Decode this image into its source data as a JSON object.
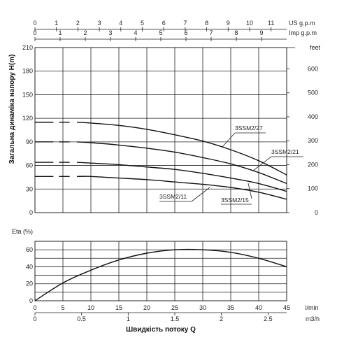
{
  "chart_data": [
    {
      "type": "line",
      "title": "",
      "xlabel": "",
      "ylabel": "Загальна динаміка напору H(m)",
      "ylabel_right_unit": "feet",
      "ylim": [
        0,
        210
      ],
      "yticks": [
        0,
        30,
        60,
        90,
        120,
        150,
        180,
        210
      ],
      "yticks_right": [
        0,
        100,
        200,
        300,
        400,
        500,
        600
      ],
      "xlim": [
        0,
        45
      ],
      "top_axis_us": {
        "unit": "US g.p.m",
        "ticks": [
          0,
          1,
          2,
          3,
          4,
          5,
          6,
          7,
          8,
          9,
          10,
          11
        ]
      },
      "top_axis_imp": {
        "unit": "Imp g.p.m",
        "ticks": [
          0,
          1,
          2,
          3,
          4,
          5,
          6,
          7,
          8,
          9
        ]
      },
      "series": [
        {
          "name": "3SSM2/27",
          "x": [
            0,
            5,
            10,
            15,
            20,
            25,
            30,
            35,
            40,
            45
          ],
          "y": [
            115,
            115,
            114,
            111,
            106,
            99,
            91,
            80,
            66,
            48
          ]
        },
        {
          "name": "3SSM2/21",
          "x": [
            0,
            5,
            10,
            15,
            20,
            25,
            30,
            35,
            40,
            45
          ],
          "y": [
            90,
            90,
            89,
            86,
            82,
            77,
            70,
            62,
            51,
            37
          ]
        },
        {
          "name": "3SSM2/15",
          "x": [
            0,
            5,
            10,
            15,
            20,
            25,
            30,
            35,
            40,
            45
          ],
          "y": [
            64,
            64,
            63,
            61,
            58,
            55,
            50,
            44,
            37,
            27
          ]
        },
        {
          "name": "3SSM2/11",
          "x": [
            0,
            5,
            10,
            15,
            20,
            25,
            30,
            35,
            40,
            45
          ],
          "y": [
            46,
            46,
            46,
            44,
            42,
            39,
            36,
            32,
            26,
            17
          ]
        }
      ],
      "curve_labels": [
        "3SSM2/27",
        "3SSM2/21",
        "3SSM2/15",
        "3SSM2/11"
      ]
    },
    {
      "type": "line",
      "title": "",
      "ylabel": "Eta (%)",
      "ylim": [
        0,
        70
      ],
      "yticks": [
        0,
        20,
        40,
        60
      ],
      "xlim": [
        0,
        45
      ],
      "series": [
        {
          "name": "",
          "x": [
            0,
            5,
            10,
            15,
            20,
            25,
            30,
            35,
            40,
            45
          ],
          "y": [
            0,
            21,
            36,
            48,
            56,
            60,
            60,
            57,
            50,
            40
          ]
        }
      ],
      "x_axis_lmin": {
        "unit": "l/min",
        "ticks": [
          0,
          5,
          10,
          15,
          20,
          25,
          30,
          35,
          40,
          45
        ]
      },
      "x_axis_m3h": {
        "unit": "m3/h",
        "ticks": [
          "0",
          "0.5",
          "1",
          "1.5",
          "2",
          "2.5"
        ],
        "values": [
          0,
          0.5,
          1,
          1.5,
          2,
          2.5
        ]
      },
      "xlabel": "Швидкість потоку Q"
    }
  ]
}
